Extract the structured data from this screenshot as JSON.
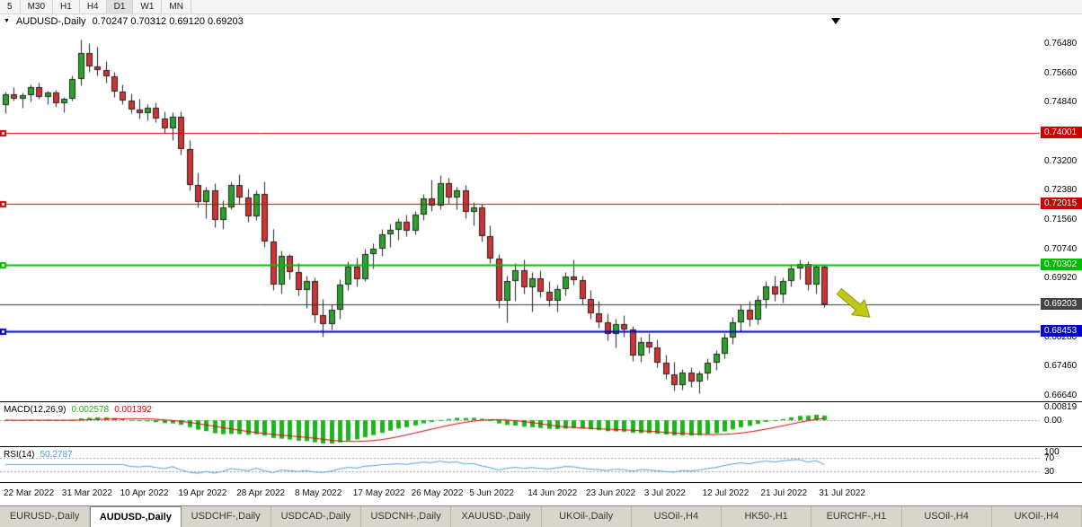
{
  "toolbar": {
    "timeframes": [
      "5",
      "M30",
      "H1",
      "H4",
      "D1",
      "W1",
      "MN"
    ],
    "active": "D1"
  },
  "chart_data": {
    "type": "candlestick",
    "symbol": "AUDUSD-",
    "period": "Daily",
    "title": "AUDUSD-,Daily",
    "ohlc_label": "0.70247 0.70312 0.69120 0.69203",
    "current_bar": {
      "open": 0.70247,
      "high": 0.70312,
      "low": 0.6912,
      "close": 0.69203
    },
    "price_axis_labels": [
      "0.76480",
      "0.75660",
      "0.74840",
      "0.74020",
      "0.73200",
      "0.72380",
      "0.71560",
      "0.70740",
      "0.69920",
      "0.69100",
      "0.68280",
      "0.67460",
      "0.66640"
    ],
    "date_labels": [
      "22 Mar 2022",
      "31 Mar 2022",
      "10 Apr 2022",
      "19 Apr 2022",
      "28 Apr 2022",
      "8 May 2022",
      "17 May 2022",
      "26 May 2022",
      "5 Jun 2022",
      "14 Jun 2022",
      "23 Jun 2022",
      "3 Jul 2022",
      "12 Jul 2022",
      "21 Jul 2022",
      "31 Jul 2022"
    ],
    "levels": [
      {
        "label": "0.74001",
        "price": 0.74001,
        "color": "#cc0000",
        "width": 1,
        "marker": true
      },
      {
        "label": "0.72015",
        "price": 0.72015,
        "color": "#cc0000",
        "width": 1,
        "marker": true
      },
      {
        "label": "0.70302",
        "price": 0.70302,
        "color": "#00bb00",
        "width": 2,
        "marker": true
      },
      {
        "label": "0.69203",
        "price": 0.69203,
        "color": "#333333",
        "width": 1,
        "marker": false,
        "badge": "#444444"
      },
      {
        "label": "0.68453",
        "price": 0.68453,
        "color": "#0000cc",
        "width": 2,
        "marker": true
      }
    ],
    "candle_colors": {
      "up": "#2aa32a",
      "down": "#cf3333",
      "outline": "#222222"
    },
    "annotation_arrow_color": "#c0c818",
    "candles": [
      [
        0.7477,
        0.7515,
        0.7455,
        0.7508
      ],
      [
        0.7508,
        0.7527,
        0.749,
        0.7495
      ],
      [
        0.7495,
        0.7512,
        0.747,
        0.7505
      ],
      [
        0.7505,
        0.7535,
        0.7488,
        0.7528
      ],
      [
        0.7528,
        0.754,
        0.7495,
        0.75
      ],
      [
        0.75,
        0.7518,
        0.748,
        0.7512
      ],
      [
        0.7512,
        0.752,
        0.7472,
        0.7483
      ],
      [
        0.7483,
        0.75,
        0.7458,
        0.7495
      ],
      [
        0.7495,
        0.756,
        0.749,
        0.755
      ],
      [
        0.755,
        0.7661,
        0.7532,
        0.7622
      ],
      [
        0.7622,
        0.765,
        0.757,
        0.7585
      ],
      [
        0.7585,
        0.764,
        0.756,
        0.7575
      ],
      [
        0.7575,
        0.76,
        0.754,
        0.7558
      ],
      [
        0.7558,
        0.757,
        0.75,
        0.7515
      ],
      [
        0.7515,
        0.7535,
        0.748,
        0.749
      ],
      [
        0.749,
        0.751,
        0.7455,
        0.7465
      ],
      [
        0.7465,
        0.7495,
        0.744,
        0.7455
      ],
      [
        0.7455,
        0.748,
        0.7435,
        0.747
      ],
      [
        0.747,
        0.7485,
        0.743,
        0.744
      ],
      [
        0.744,
        0.746,
        0.74,
        0.7412
      ],
      [
        0.7412,
        0.7458,
        0.738,
        0.7445
      ],
      [
        0.7445,
        0.746,
        0.734,
        0.7355
      ],
      [
        0.7355,
        0.738,
        0.724,
        0.7255
      ],
      [
        0.7255,
        0.729,
        0.719,
        0.7205
      ],
      [
        0.7205,
        0.725,
        0.716,
        0.724
      ],
      [
        0.724,
        0.726,
        0.7135,
        0.7155
      ],
      [
        0.7155,
        0.721,
        0.713,
        0.7192
      ],
      [
        0.7192,
        0.7265,
        0.7185,
        0.7255
      ],
      [
        0.7255,
        0.7285,
        0.72,
        0.722
      ],
      [
        0.722,
        0.7245,
        0.715,
        0.7165
      ],
      [
        0.7165,
        0.724,
        0.7155,
        0.723
      ],
      [
        0.723,
        0.7265,
        0.708,
        0.7095
      ],
      [
        0.7095,
        0.713,
        0.696,
        0.6975
      ],
      [
        0.6975,
        0.707,
        0.695,
        0.7055
      ],
      [
        0.7055,
        0.706,
        0.699,
        0.701
      ],
      [
        0.701,
        0.7035,
        0.6945,
        0.696
      ],
      [
        0.696,
        0.7,
        0.691,
        0.6985
      ],
      [
        0.6985,
        0.6995,
        0.687,
        0.689
      ],
      [
        0.689,
        0.6935,
        0.683,
        0.6865
      ],
      [
        0.6865,
        0.692,
        0.685,
        0.6905
      ],
      [
        0.6905,
        0.699,
        0.688,
        0.6975
      ],
      [
        0.6975,
        0.704,
        0.696,
        0.7025
      ],
      [
        0.7025,
        0.705,
        0.697,
        0.699
      ],
      [
        0.699,
        0.7075,
        0.6985,
        0.706
      ],
      [
        0.706,
        0.709,
        0.702,
        0.7075
      ],
      [
        0.7075,
        0.713,
        0.7055,
        0.7115
      ],
      [
        0.7115,
        0.7145,
        0.708,
        0.7128
      ],
      [
        0.7128,
        0.716,
        0.71,
        0.715
      ],
      [
        0.715,
        0.717,
        0.711,
        0.7125
      ],
      [
        0.7125,
        0.718,
        0.7115,
        0.717
      ],
      [
        0.717,
        0.723,
        0.7155,
        0.7215
      ],
      [
        0.7215,
        0.727,
        0.718,
        0.7195
      ],
      [
        0.7195,
        0.7282,
        0.7185,
        0.7258
      ],
      [
        0.7258,
        0.7275,
        0.72,
        0.722
      ],
      [
        0.722,
        0.725,
        0.7185,
        0.724
      ],
      [
        0.724,
        0.7255,
        0.716,
        0.7178
      ],
      [
        0.7178,
        0.7205,
        0.714,
        0.7192
      ],
      [
        0.7192,
        0.72,
        0.7095,
        0.711
      ],
      [
        0.711,
        0.714,
        0.7035,
        0.7048
      ],
      [
        0.7048,
        0.706,
        0.691,
        0.693
      ],
      [
        0.693,
        0.7,
        0.687,
        0.6985
      ],
      [
        0.6985,
        0.7035,
        0.693,
        0.7015
      ],
      [
        0.7015,
        0.7045,
        0.695,
        0.6968
      ],
      [
        0.6968,
        0.701,
        0.69,
        0.6992
      ],
      [
        0.6992,
        0.7015,
        0.694,
        0.6955
      ],
      [
        0.6955,
        0.6985,
        0.6915,
        0.693
      ],
      [
        0.693,
        0.6975,
        0.69,
        0.6962
      ],
      [
        0.6962,
        0.701,
        0.6945,
        0.6998
      ],
      [
        0.6998,
        0.7045,
        0.6975,
        0.6988
      ],
      [
        0.6988,
        0.7,
        0.692,
        0.6935
      ],
      [
        0.6935,
        0.696,
        0.688,
        0.6895
      ],
      [
        0.6895,
        0.693,
        0.6855,
        0.687
      ],
      [
        0.687,
        0.6895,
        0.682,
        0.6838
      ],
      [
        0.6838,
        0.688,
        0.68,
        0.6865
      ],
      [
        0.6865,
        0.689,
        0.683,
        0.685
      ],
      [
        0.685,
        0.686,
        0.6762,
        0.6776
      ],
      [
        0.6776,
        0.683,
        0.676,
        0.6815
      ],
      [
        0.6815,
        0.684,
        0.6785,
        0.68
      ],
      [
        0.68,
        0.6822,
        0.6745,
        0.6758
      ],
      [
        0.6758,
        0.678,
        0.6712,
        0.6725
      ],
      [
        0.6725,
        0.676,
        0.668,
        0.6695
      ],
      [
        0.6695,
        0.674,
        0.6682,
        0.673
      ],
      [
        0.673,
        0.6745,
        0.669,
        0.6705
      ],
      [
        0.6705,
        0.6735,
        0.6672,
        0.6726
      ],
      [
        0.6726,
        0.677,
        0.671,
        0.6758
      ],
      [
        0.6758,
        0.6792,
        0.6738,
        0.6782
      ],
      [
        0.6782,
        0.684,
        0.677,
        0.6828
      ],
      [
        0.6828,
        0.6885,
        0.681,
        0.687
      ],
      [
        0.687,
        0.692,
        0.6845,
        0.6905
      ],
      [
        0.6905,
        0.693,
        0.686,
        0.6878
      ],
      [
        0.6878,
        0.6945,
        0.6865,
        0.6932
      ],
      [
        0.6932,
        0.6985,
        0.691,
        0.697
      ],
      [
        0.697,
        0.7,
        0.693,
        0.6948
      ],
      [
        0.6948,
        0.6995,
        0.6925,
        0.6985
      ],
      [
        0.6985,
        0.7032,
        0.697,
        0.702
      ],
      [
        0.702,
        0.7045,
        0.699,
        0.7032
      ],
      [
        0.7032,
        0.704,
        0.696,
        0.6975
      ],
      [
        0.6975,
        0.703,
        0.695,
        0.7025
      ],
      [
        0.70247,
        0.70312,
        0.6912,
        0.69203
      ]
    ],
    "indicators": {
      "macd": {
        "label": "MACD(12,26,9)",
        "value_main": "0.002578",
        "value_signal": "0.001392",
        "axis_labels": [
          "0.00819",
          "0.00"
        ],
        "histogram_color": "#1db31d",
        "signal_color": "#e00000"
      },
      "rsi": {
        "label": "RSI(14)",
        "value": "50.2787",
        "axis_labels": [
          "100",
          "70",
          "30"
        ],
        "levels": [
          70,
          30
        ],
        "line_color": "#4d9fd6"
      }
    }
  },
  "tabs": {
    "active": "AUDUSD-,Daily",
    "items": [
      "EURUSD-,Daily",
      "AUDUSD-,Daily",
      "USDCHF-,Daily",
      "USDCAD-,Daily",
      "USDCNH-,Daily",
      "XAUUSD-,Daily",
      "UKOil-,Daily",
      "USOil-,H4",
      "HK50-,H1",
      "EURCHF-,H1",
      "USOil-,H4",
      "UKOil-,H4"
    ]
  }
}
